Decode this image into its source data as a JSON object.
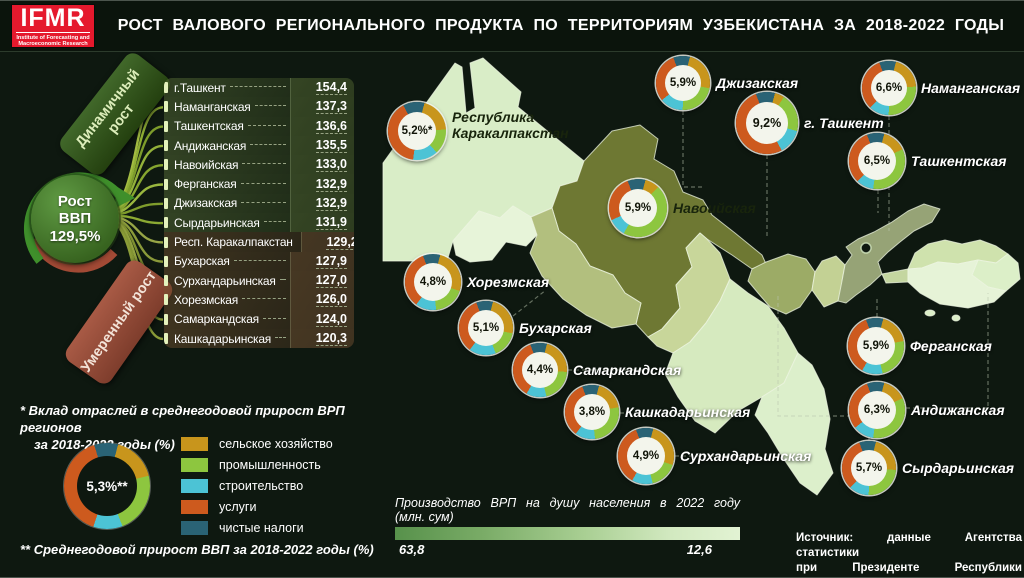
{
  "header": {
    "logo_acronym": "IFMR",
    "logo_subtitle1": "Institute of Forecasting and",
    "logo_subtitle2": "Macroeconomic Research",
    "title": "РОСТ ВАЛОВОГО РЕГИОНАЛЬНОГО ПРОДУКТА ПО ТЕРРИТОРИЯМ УЗБЕКИСТАНА ЗА 2018-2022 ГОДЫ"
  },
  "gdp_circle": {
    "line1": "Рост",
    "line2": "ВВП",
    "value": "129,5%"
  },
  "groups": {
    "dynamic": "Динамичный рост",
    "moderate": "Умеренный рост"
  },
  "ranking": [
    {
      "name": "г.Ташкент",
      "value": "154,4",
      "group": "dynamic"
    },
    {
      "name": "Наманганская",
      "value": "137,3",
      "group": "dynamic"
    },
    {
      "name": "Ташкентская",
      "value": "136,6",
      "group": "dynamic"
    },
    {
      "name": "Андижанская",
      "value": "135,5",
      "group": "dynamic"
    },
    {
      "name": "Навоийская",
      "value": "133,0",
      "group": "dynamic"
    },
    {
      "name": "Ферганская",
      "value": "132,9",
      "group": "dynamic"
    },
    {
      "name": "Джизакская",
      "value": "132,9",
      "group": "dynamic"
    },
    {
      "name": "Сырдарьинская",
      "value": "131,9",
      "group": "dynamic"
    },
    {
      "name": "Респ. Каракалпакстан",
      "value": "129,2",
      "group": "moderate"
    },
    {
      "name": "Бухарская",
      "value": "127,9",
      "group": "moderate"
    },
    {
      "name": "Сурхандарьинская",
      "value": "127,0",
      "group": "moderate"
    },
    {
      "name": "Хорезмская",
      "value": "126,0",
      "group": "moderate"
    },
    {
      "name": "Самаркандская",
      "value": "124,0",
      "group": "moderate"
    },
    {
      "name": "Кашкадарьинская",
      "value": "120,3",
      "group": "moderate"
    }
  ],
  "notes": {
    "industries_line1": "* Вклад отраслей в среднегодовой прирост ВРП регионов",
    "industries_line2": "за 2018-2022 годы (%)",
    "average": "** Среднегодовой прирост ВВП за 2018-2022 годы (%)"
  },
  "overall_donut": {
    "label": "5,3%**",
    "segments": [
      17,
      23,
      11,
      40,
      9
    ]
  },
  "legend": [
    {
      "label": "сельское хозяйство",
      "color": "#c8951c"
    },
    {
      "label": "промышленность",
      "color": "#8dc63f"
    },
    {
      "label": "строительство",
      "color": "#4cc3d5"
    },
    {
      "label": "услуги",
      "color": "#cd5a1e"
    },
    {
      "label": "чистые налоги",
      "color": "#2a6375"
    }
  ],
  "map_donuts": [
    {
      "name": "Республика Каракалпакстан",
      "value": "5,2%*",
      "two_line": true,
      "dark_label": true,
      "segments": [
        20,
        14,
        14,
        40,
        12
      ]
    },
    {
      "name": "Джизакская",
      "value": "5,9%",
      "segments": [
        24,
        22,
        14,
        30,
        10
      ]
    },
    {
      "name": "Наманганская",
      "value": "6,6%",
      "segments": [
        20,
        26,
        12,
        32,
        10
      ]
    },
    {
      "name": "г. Ташкент",
      "value": "9,2%",
      "segments": [
        5,
        20,
        13,
        52,
        10
      ]
    },
    {
      "name": "Ташкентская",
      "value": "6,5%",
      "segments": [
        14,
        34,
        10,
        32,
        10
      ]
    },
    {
      "name": "Навоийская",
      "value": "5,9%",
      "dark_label": true,
      "segments": [
        8,
        46,
        10,
        26,
        10
      ]
    },
    {
      "name": "Хорезмская",
      "value": "4,8%",
      "segments": [
        26,
        18,
        12,
        34,
        10
      ]
    },
    {
      "name": "Бухарская",
      "value": "5,1%",
      "segments": [
        24,
        16,
        16,
        34,
        10
      ]
    },
    {
      "name": "Самаркандская",
      "value": "4,4%",
      "segments": [
        22,
        20,
        12,
        36,
        10
      ]
    },
    {
      "name": "Кашкадарьинская",
      "value": "3,8%",
      "segments": [
        18,
        26,
        12,
        34,
        10
      ]
    },
    {
      "name": "Сурхандарьинская",
      "value": "4,9%",
      "segments": [
        26,
        16,
        12,
        36,
        10
      ]
    },
    {
      "name": "Ферганская",
      "value": "5,9%",
      "segments": [
        18,
        24,
        12,
        36,
        10
      ]
    },
    {
      "name": "Андижанская",
      "value": "6,3%",
      "segments": [
        14,
        34,
        12,
        30,
        10
      ]
    },
    {
      "name": "Сырдарьинская",
      "value": "5,7%",
      "segments": [
        22,
        24,
        12,
        32,
        10
      ]
    }
  ],
  "scale": {
    "title": "Производство ВРП на душу населения в 2022 году",
    "subtitle": "(млн. сум)",
    "max": "63,8",
    "min": "12,6"
  },
  "source": {
    "line1": "Источник: данные Агентства статистики",
    "line2": "при Президенте Республики Узбекистан"
  },
  "chart_data": [
    {
      "type": "bar",
      "title": "Рост валового регионального продукта по территориям Узбекистана за 2018-2022 годы (%)",
      "categories": [
        "г.Ташкент",
        "Наманганская",
        "Ташкентская",
        "Андижанская",
        "Навоийская",
        "Ферганская",
        "Джизакская",
        "Сырдарьинская",
        "Респ. Каракалпакстан",
        "Бухарская",
        "Сурхандарьинская",
        "Хорезмская",
        "Самаркандская",
        "Кашкадарьинская"
      ],
      "values": [
        154.4,
        137.3,
        136.6,
        135.5,
        133.0,
        132.9,
        132.9,
        131.9,
        129.2,
        127.9,
        127.0,
        126.0,
        124.0,
        120.3
      ],
      "annotation": "Рост ВВП 129,5%",
      "group_split": {
        "dynamic": "рост выше 129,5%",
        "moderate": "рост ниже 129,5%"
      }
    },
    {
      "type": "pie",
      "title": "Вклад отраслей в среднегодовой прирост ВРП регионов за 2018-2022 годы (%)",
      "legend": [
        "сельское хозяйство",
        "промышленность",
        "строительство",
        "услуги",
        "чистые налоги"
      ],
      "points": [
        {
          "region": "Республика Каракалпакстан",
          "value": 5.2
        },
        {
          "region": "Джизакская",
          "value": 5.9
        },
        {
          "region": "Наманганская",
          "value": 6.6
        },
        {
          "region": "г. Ташкент",
          "value": 9.2
        },
        {
          "region": "Ташкентская",
          "value": 6.5
        },
        {
          "region": "Навоийская",
          "value": 5.9
        },
        {
          "region": "Хорезмская",
          "value": 4.8
        },
        {
          "region": "Бухарская",
          "value": 5.1
        },
        {
          "region": "Самаркандская",
          "value": 4.4
        },
        {
          "region": "Кашкадарьинская",
          "value": 3.8
        },
        {
          "region": "Сурхандарьинская",
          "value": 4.9
        },
        {
          "region": "Ферганская",
          "value": 5.9
        },
        {
          "region": "Андижанская",
          "value": 6.3
        },
        {
          "region": "Сырдарьинская",
          "value": 5.7
        },
        {
          "region": "Узбекистан, среднегодовой прирост ВВП",
          "value": 5.3
        }
      ]
    },
    {
      "type": "heatmap",
      "title": "Производство ВРП на душу населения в 2022 году (млн. сум)",
      "range": [
        63.8,
        12.6
      ]
    }
  ]
}
